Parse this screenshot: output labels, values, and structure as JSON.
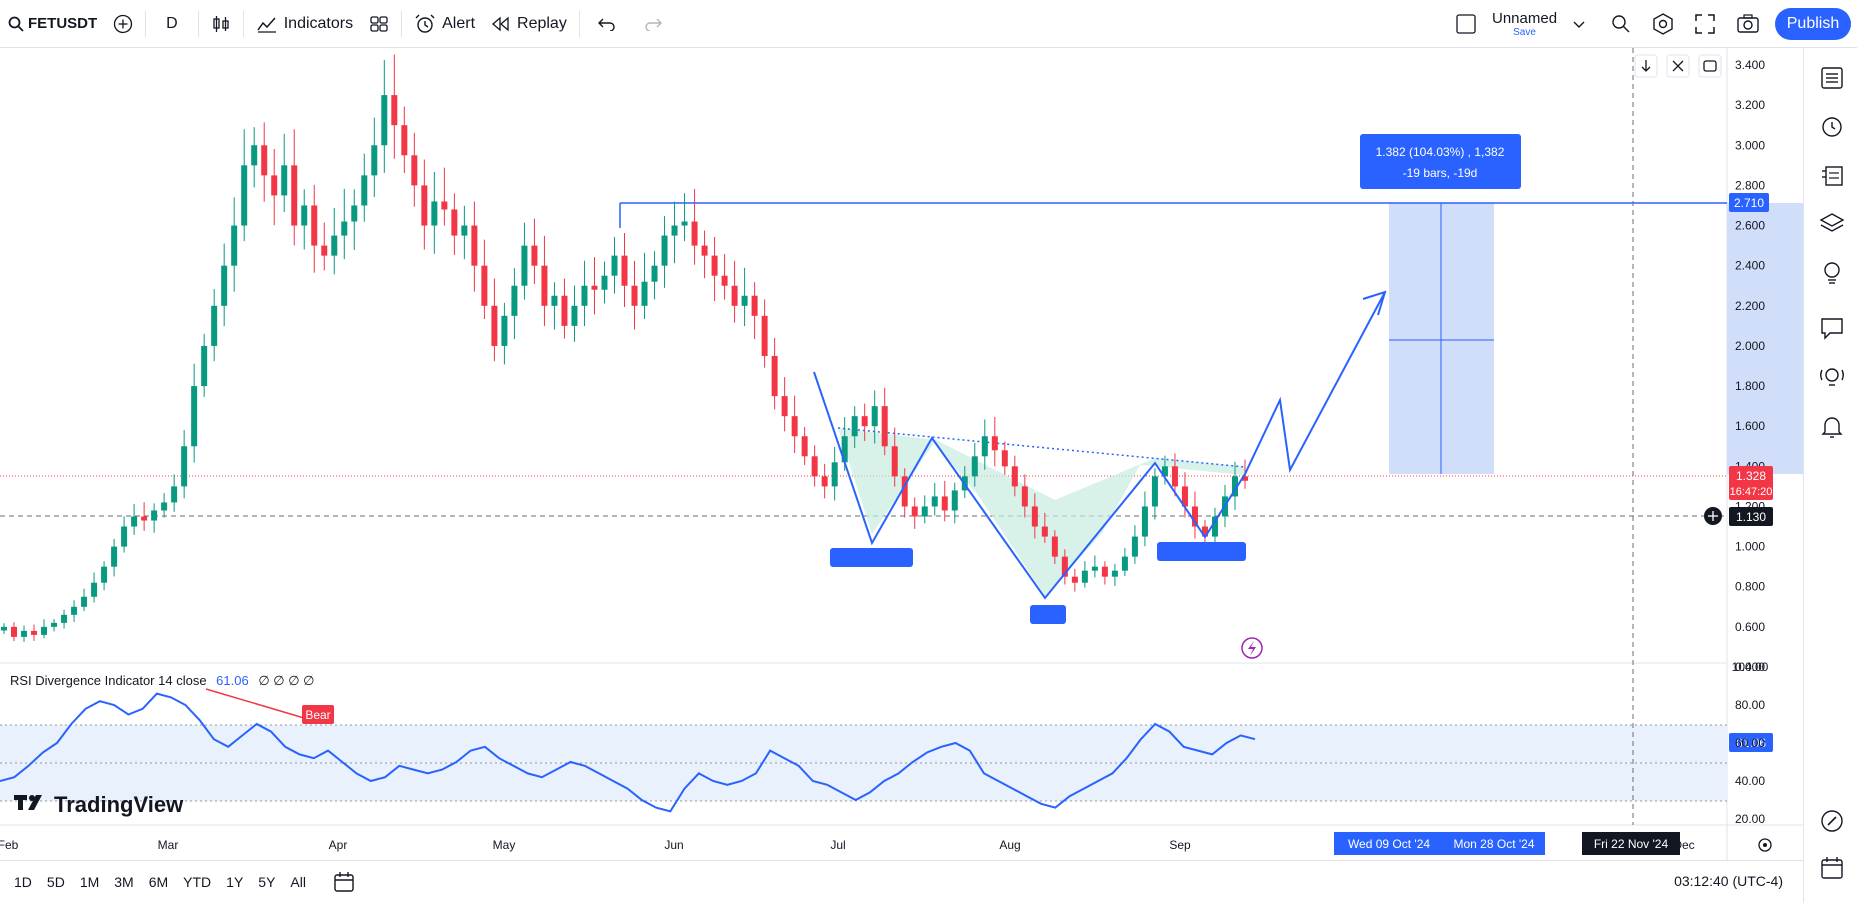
{
  "toolbar": {
    "symbol": "FETUSDT",
    "interval": "D",
    "indicators": "Indicators",
    "alert": "Alert",
    "replay": "Replay",
    "layout_name": "Unnamed",
    "save": "Save",
    "publish": "Publish"
  },
  "price_axis": [
    "3.400",
    "3.200",
    "3.000",
    "2.800",
    "2.600",
    "2.400",
    "2.200",
    "2.000",
    "1.800",
    "1.600",
    "1.400",
    "1.200",
    "1.000",
    "0.800",
    "0.600",
    "0.400"
  ],
  "price_badges": {
    "target": "2.710",
    "last": "1.328",
    "countdown": "16:47:20",
    "crosshair": "1.130"
  },
  "measure": {
    "line1": "1.382 (104.03%) , 1,382",
    "line2": "-19 bars, -19d"
  },
  "rsi": {
    "title": "RSI Divergence Indicator 14 close",
    "value": "61.06",
    "zeros": "∅ ∅ ∅ ∅",
    "axis": [
      "100.00",
      "80.00",
      "60.00",
      "40.00",
      "20.00"
    ],
    "badge": "61.06",
    "bear": "Bear"
  },
  "time_axis": {
    "labels": [
      "Feb",
      "Mar",
      "Apr",
      "May",
      "Jun",
      "Jul",
      "Aug",
      "Sep",
      "Dec"
    ],
    "range_start": "Wed 09 Oct '24",
    "range_end": "Mon 28 Oct '24",
    "crosshair": "Fri 22 Nov '24"
  },
  "brand": "TradingView",
  "ranges": [
    "1D",
    "5D",
    "1M",
    "3M",
    "6M",
    "YTD",
    "1Y",
    "5Y",
    "All"
  ],
  "clock": "03:12:40 (UTC-4)",
  "colors": {
    "accent": "#2962ff",
    "up": "#089981",
    "down": "#f23645",
    "fill": "#d1def9",
    "pattern": "#c8ebe0"
  },
  "chart_data": {
    "type": "candlestick",
    "symbol": "FETUSDT",
    "interval": "D",
    "ylim": [
      0.4,
      3.4
    ],
    "series": [
      {
        "values": [
          0.6,
          0.55,
          0.58,
          0.56,
          0.6,
          0.62,
          0.66,
          0.7,
          0.75,
          0.82,
          0.9,
          1.0,
          1.1,
          1.15,
          1.13,
          1.18,
          1.22,
          1.3,
          1.5,
          1.8,
          2.0,
          2.2,
          2.4,
          2.6,
          2.9,
          3.0,
          2.85,
          2.75,
          2.9,
          2.6,
          2.7,
          2.5,
          2.45,
          2.55,
          2.62,
          2.7,
          2.85,
          3.0,
          3.25,
          3.1,
          2.95,
          2.8,
          2.6,
          2.72,
          2.68,
          2.55,
          2.6,
          2.4,
          2.2,
          2.0,
          2.15,
          2.3,
          2.5,
          2.4,
          2.2,
          2.25,
          2.1,
          2.2,
          2.3,
          2.28,
          2.35,
          2.45,
          2.3,
          2.2,
          2.32,
          2.4,
          2.55,
          2.6,
          2.62,
          2.5,
          2.45,
          2.35,
          2.3,
          2.2,
          2.25,
          2.15,
          1.95,
          1.75,
          1.65,
          1.55,
          1.45,
          1.35,
          1.3,
          1.42,
          1.55,
          1.65,
          1.6,
          1.7,
          1.5,
          1.35,
          1.2,
          1.15,
          1.2,
          1.25,
          1.18,
          1.28,
          1.35,
          1.45,
          1.55,
          1.48,
          1.4,
          1.3,
          1.2,
          1.1,
          1.05,
          0.95,
          0.85,
          0.82,
          0.88,
          0.9,
          0.85,
          0.88,
          0.95,
          1.05,
          1.2,
          1.35,
          1.4,
          1.3,
          1.2,
          1.1,
          1.05,
          1.15,
          1.25,
          1.35,
          1.328
        ]
      }
    ],
    "neckline_level": 1.4,
    "target": 2.71,
    "rsi_values": [
      40,
      42,
      48,
      55,
      60,
      70,
      78,
      82,
      80,
      75,
      78,
      86,
      84,
      80,
      72,
      62,
      58,
      64,
      70,
      66,
      58,
      54,
      52,
      56,
      50,
      44,
      40,
      42,
      48,
      46,
      44,
      46,
      50,
      56,
      58,
      52,
      48,
      44,
      42,
      46,
      50,
      48,
      44,
      40,
      36,
      30,
      26,
      24,
      36,
      44,
      40,
      38,
      40,
      44,
      56,
      52,
      48,
      40,
      38,
      34,
      30,
      34,
      40,
      44,
      50,
      55,
      58,
      60,
      56,
      44,
      40,
      36,
      32,
      28,
      26,
      32,
      36,
      40,
      44,
      52,
      62,
      70,
      66,
      58,
      56,
      54,
      60,
      64,
      62
    ]
  }
}
